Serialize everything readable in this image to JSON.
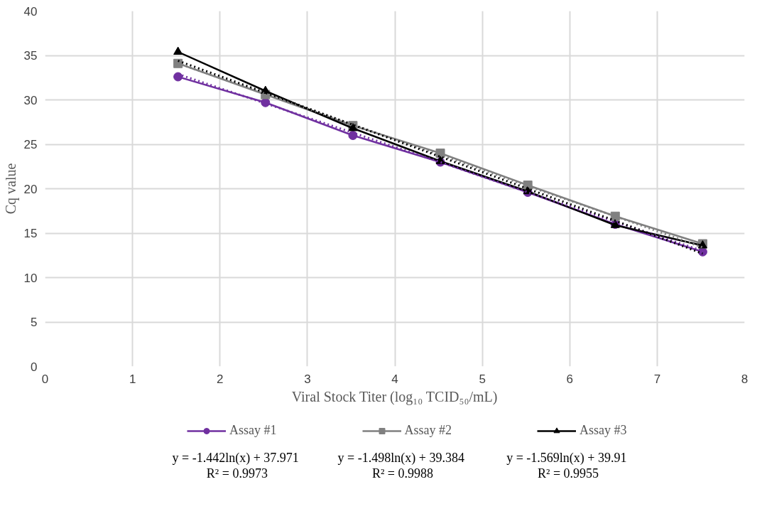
{
  "chart_data": {
    "type": "line",
    "xlabel": "Viral Stock Titer (log₁₀ TCID₅₀/mL)",
    "ylabel": "Cq value",
    "x": [
      1.52,
      2.52,
      3.52,
      4.52,
      5.52,
      6.52,
      7.52
    ],
    "xlim": [
      0,
      8
    ],
    "xticks": [
      0,
      1,
      2,
      3,
      4,
      5,
      6,
      7,
      8
    ],
    "ylim": [
      0,
      40
    ],
    "yticks": [
      0,
      5,
      10,
      15,
      20,
      25,
      30,
      35,
      40
    ],
    "grid": true,
    "legend": "bottom",
    "line_style": "solid",
    "series": [
      {
        "name": "Assay #1",
        "color": "#7030a0",
        "marker": "circle",
        "values": [
          32.6,
          29.7,
          26.0,
          23.0,
          19.6,
          16.0,
          12.9
        ]
      },
      {
        "name": "Assay #2",
        "color": "#808080",
        "marker": "square",
        "values": [
          34.1,
          30.6,
          27.1,
          24.0,
          20.4,
          16.9,
          13.8
        ]
      },
      {
        "name": "Assay #3",
        "color": "#000000",
        "marker": "triangle",
        "values": [
          35.4,
          31.0,
          26.8,
          23.1,
          19.7,
          15.9,
          13.6
        ]
      },
      {
        "type": "line",
        "color": "#7030a0",
        "line_style": "dotted",
        "values": [
          32.9,
          29.6,
          26.3,
          23.0,
          19.6,
          16.3,
          13.0
        ]
      },
      {
        "type": "line",
        "color": "#808080",
        "line_style": "dotted",
        "values": [
          34.1,
          30.7,
          27.2,
          23.8,
          20.3,
          16.9,
          13.4
        ]
      },
      {
        "type": "line",
        "color": "#000000",
        "line_style": "dotted",
        "values": [
          34.4,
          30.8,
          27.2,
          23.6,
          20.0,
          16.4,
          12.7
        ]
      }
    ],
    "annotations": [
      "y = -1.442ln(x)  + 37.971\nR² = 0.9973",
      "y = -1.498ln(x)  + 39.384\nR² = 0.9988",
      "y = -1.569ln(x)  + 39.91\nR² = 0.9955"
    ]
  }
}
